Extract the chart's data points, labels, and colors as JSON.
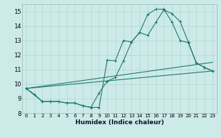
{
  "xlabel": "Humidex (Indice chaleur)",
  "xlim": [
    -0.5,
    23.5
  ],
  "ylim": [
    8.0,
    15.5
  ],
  "yticks": [
    8,
    9,
    10,
    11,
    12,
    13,
    14,
    15
  ],
  "xticks": [
    0,
    1,
    2,
    3,
    4,
    5,
    6,
    7,
    8,
    9,
    10,
    11,
    12,
    13,
    14,
    15,
    16,
    17,
    18,
    19,
    20,
    21,
    22,
    23
  ],
  "background_color": "#cceae7",
  "grid_color": "#b8d8d4",
  "line_color": "#1a7a6e",
  "line1_x": [
    0,
    1,
    2,
    3,
    4,
    5,
    6,
    7,
    8,
    9,
    10,
    11,
    12,
    13,
    14,
    15,
    16,
    17,
    18,
    19,
    20,
    21,
    22,
    23
  ],
  "line1_y": [
    9.7,
    9.3,
    8.8,
    8.8,
    8.8,
    8.7,
    8.7,
    8.5,
    8.4,
    8.4,
    11.65,
    11.6,
    13.0,
    12.9,
    13.55,
    13.35,
    14.25,
    15.1,
    14.85,
    14.3,
    12.9,
    11.45,
    11.15,
    10.9
  ],
  "line2_x": [
    0,
    2,
    3,
    4,
    5,
    6,
    7,
    8,
    9,
    10,
    11,
    12,
    13,
    14,
    15,
    16,
    17,
    18,
    19,
    20,
    21,
    22,
    23
  ],
  "line2_y": [
    9.7,
    8.8,
    8.8,
    8.8,
    8.7,
    8.7,
    8.5,
    8.4,
    9.4,
    10.2,
    10.45,
    11.6,
    12.9,
    13.55,
    14.8,
    15.15,
    15.15,
    14.25,
    13.0,
    12.85,
    11.45,
    11.15,
    10.9
  ],
  "line3_x": [
    0,
    23
  ],
  "line3_y": [
    9.7,
    10.9
  ],
  "line4_x": [
    0,
    23
  ],
  "line4_y": [
    9.7,
    11.5
  ]
}
